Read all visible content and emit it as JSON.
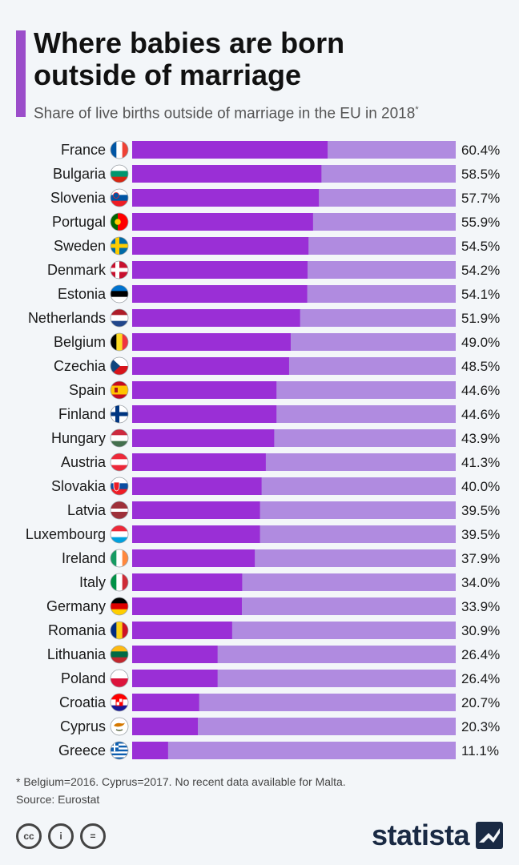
{
  "header": {
    "title_line1": "Where babies are born",
    "title_line2": "outside of marriage",
    "subtitle": "Share of live births outside of marriage in the EU in 2018",
    "subtitle_mark": "*"
  },
  "colors": {
    "accent": "#9b4dca",
    "bar": "#9a2fd6",
    "track": "#b08be0"
  },
  "chart_data": {
    "type": "bar",
    "orientation": "horizontal",
    "title": "Where babies are born outside of marriage",
    "subtitle": "Share of live births outside of marriage in the EU in 2018",
    "xlim": [
      0,
      100
    ],
    "value_suffix": "%",
    "categories": [
      "France",
      "Bulgaria",
      "Slovenia",
      "Portugal",
      "Sweden",
      "Denmark",
      "Estonia",
      "Netherlands",
      "Belgium",
      "Czechia",
      "Spain",
      "Finland",
      "Hungary",
      "Austria",
      "Slovakia",
      "Latvia",
      "Luxembourg",
      "Ireland",
      "Italy",
      "Germany",
      "Romania",
      "Lithuania",
      "Poland",
      "Croatia",
      "Cyprus",
      "Greece"
    ],
    "values": [
      60.4,
      58.5,
      57.7,
      55.9,
      54.5,
      54.2,
      54.1,
      51.9,
      49.0,
      48.5,
      44.6,
      44.6,
      43.9,
      41.3,
      40.0,
      39.5,
      39.5,
      37.9,
      34.0,
      33.9,
      30.9,
      26.4,
      26.4,
      20.7,
      20.3,
      11.1
    ],
    "value_labels": [
      "60.4%",
      "58.5%",
      "57.7%",
      "55.9%",
      "54.5%",
      "54.2%",
      "54.1%",
      "51.9%",
      "49.0%",
      "48.5%",
      "44.6%",
      "44.6%",
      "43.9%",
      "41.3%",
      "40.0%",
      "39.5%",
      "39.5%",
      "37.9%",
      "34.0%",
      "33.9%",
      "30.9%",
      "26.4%",
      "26.4%",
      "20.7%",
      "20.3%",
      "11.1%"
    ],
    "flags": [
      "flag-france-icon",
      "flag-bulgaria-icon",
      "flag-slovenia-icon",
      "flag-portugal-icon",
      "flag-sweden-icon",
      "flag-denmark-icon",
      "flag-estonia-icon",
      "flag-netherlands-icon",
      "flag-belgium-icon",
      "flag-czechia-icon",
      "flag-spain-icon",
      "flag-finland-icon",
      "flag-hungary-icon",
      "flag-austria-icon",
      "flag-slovakia-icon",
      "flag-latvia-icon",
      "flag-luxembourg-icon",
      "flag-ireland-icon",
      "flag-italy-icon",
      "flag-germany-icon",
      "flag-romania-icon",
      "flag-lithuania-icon",
      "flag-poland-icon",
      "flag-croatia-icon",
      "flag-cyprus-icon",
      "flag-greece-icon"
    ],
    "grid": false
  },
  "footer": {
    "footnote": "* Belgium=2016. Cyprus=2017. No recent data available for Malta.",
    "source": "Source: Eurostat",
    "cc_icons": [
      "cc-icon",
      "attribution-icon",
      "no-derivatives-icon"
    ],
    "cc_glyphs": [
      "cc",
      "i",
      "="
    ],
    "logo": "statista"
  }
}
